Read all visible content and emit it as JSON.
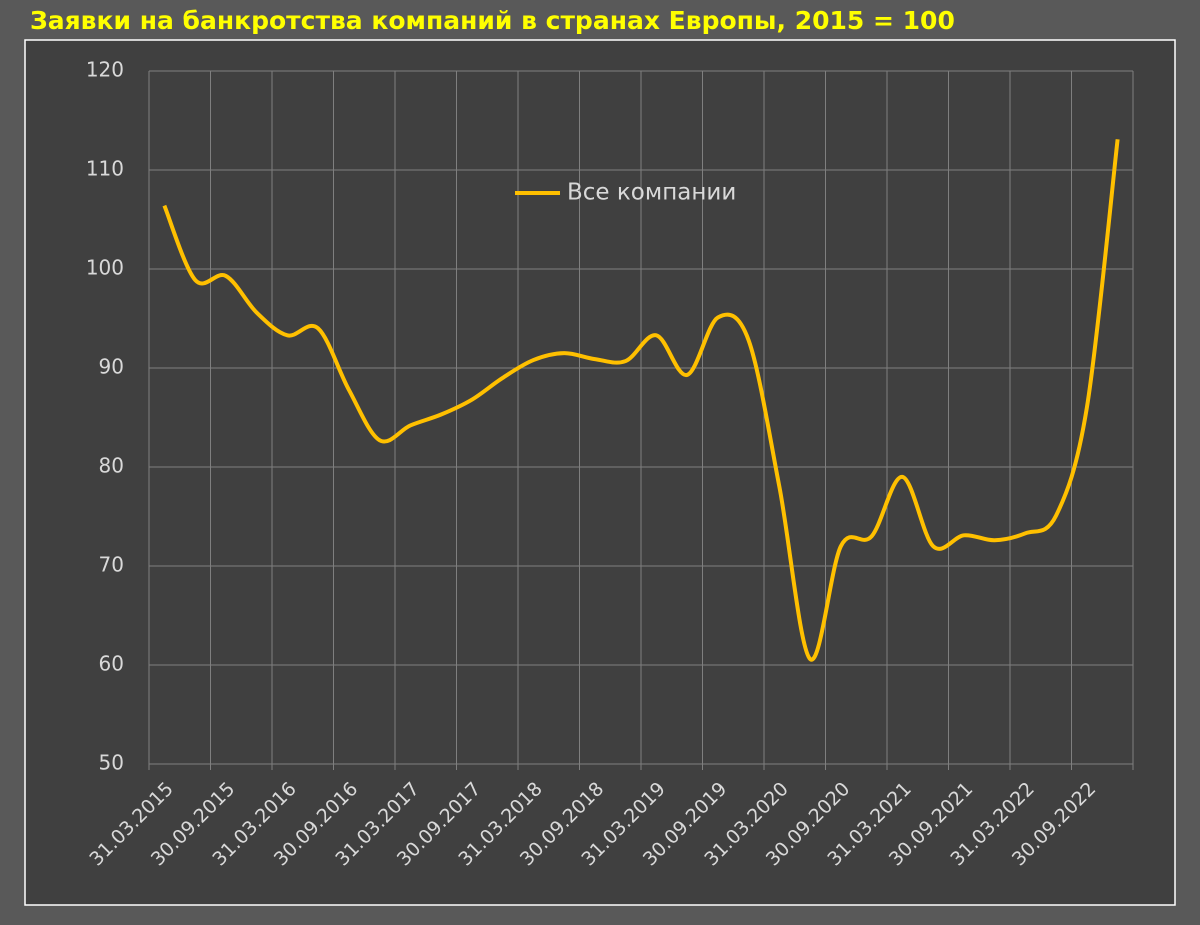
{
  "chart_data": {
    "type": "line",
    "title": "Заявки на банкротства компаний в странах Европы, 2015 = 100",
    "categories": [
      "31.03.2015",
      null,
      "30.09.2015",
      null,
      "31.03.2016",
      null,
      "30.09.2016",
      null,
      "31.03.2017",
      null,
      "30.09.2017",
      null,
      "31.03.2018",
      null,
      "30.09.2018",
      null,
      "31.03.2019",
      null,
      "30.09.2019",
      null,
      "31.03.2020",
      null,
      "30.09.2020",
      null,
      "31.03.2021",
      null,
      "30.09.2021",
      null,
      "31.03.2022",
      null,
      "30.09.2022",
      null
    ],
    "series": [
      {
        "name": "Все компании",
        "color": "#ffc000",
        "values": [
          106.4,
          98.9,
          99.3,
          95.6,
          93.3,
          94.0,
          87.8,
          82.7,
          84.2,
          85.3,
          86.8,
          89.0,
          90.8,
          91.5,
          90.9,
          90.7,
          93.3,
          89.3,
          95.1,
          92.8,
          78.0,
          60.6,
          72.0,
          73.0,
          79.0,
          72.0,
          73.1,
          72.6,
          73.3,
          75.1,
          86.0,
          113.1
        ]
      }
    ],
    "ylim": [
      50,
      120
    ],
    "yticks": [
      50,
      60,
      70,
      80,
      90,
      100,
      110,
      120
    ],
    "grid": true
  }
}
